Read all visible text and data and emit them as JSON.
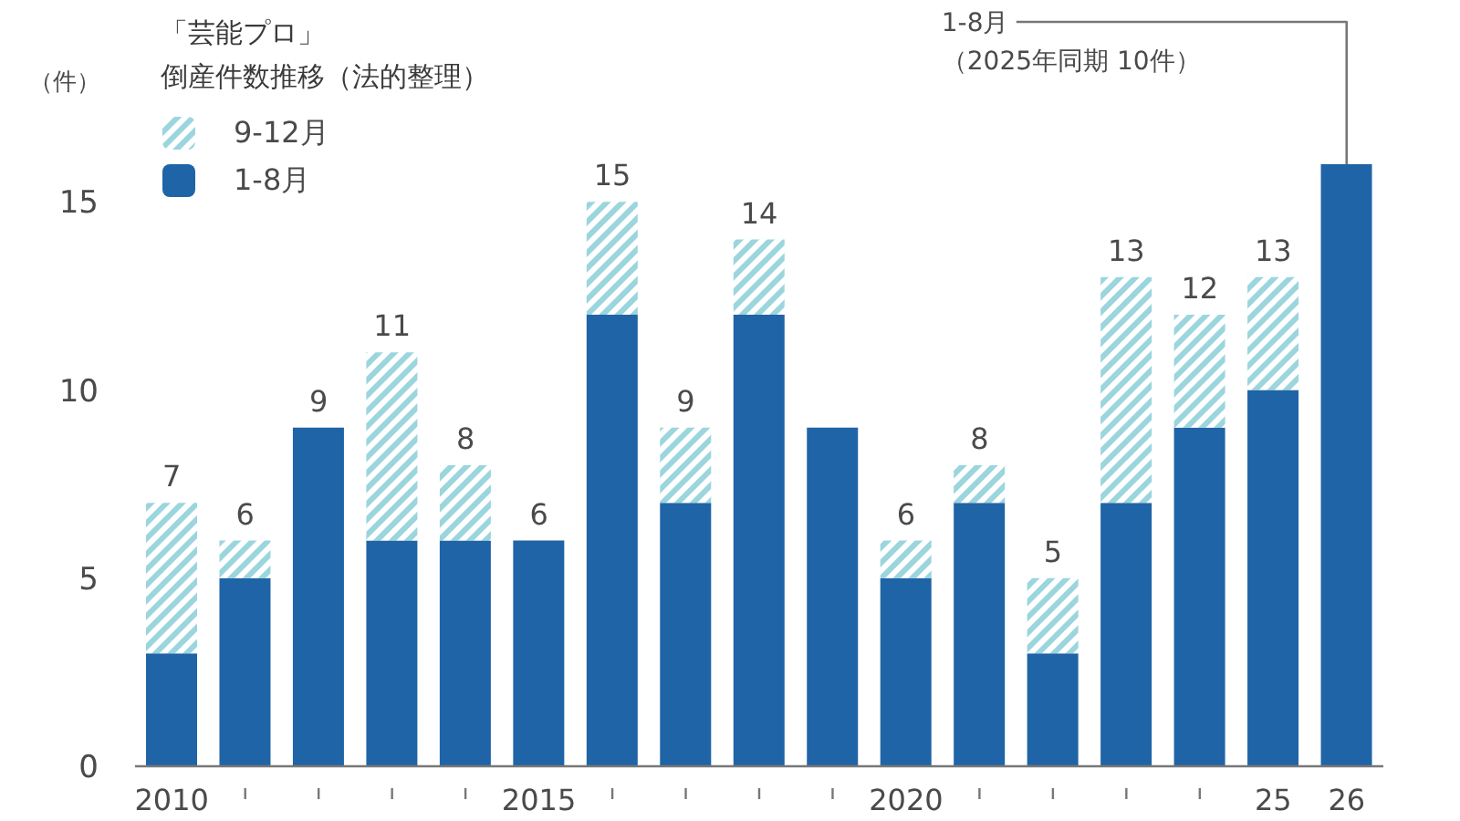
{
  "chart_data": {
    "type": "bar",
    "title": "「芸能プロ」",
    "subtitle": "倒産件数推移（法的整理）",
    "ylabel": "（件）",
    "categories": [
      "2010",
      null,
      null,
      null,
      null,
      "2015",
      null,
      null,
      null,
      null,
      "2020",
      null,
      null,
      null,
      null,
      "25",
      "26"
    ],
    "series": [
      {
        "name": "1-8月",
        "color": "#1f64a6",
        "values": [
          3,
          5,
          9,
          6,
          6,
          6,
          12,
          7,
          12,
          9,
          5,
          7,
          3,
          7,
          9,
          10,
          16
        ]
      },
      {
        "name": "9-12月",
        "color": "#9bd5de",
        "values": [
          4,
          1,
          0,
          5,
          2,
          0,
          3,
          2,
          2,
          0,
          1,
          1,
          2,
          6,
          3,
          3,
          null
        ]
      }
    ],
    "stacked": true,
    "ylim": [
      0,
      16
    ],
    "yticks": [
      0,
      5,
      10,
      15
    ],
    "legend": "top left",
    "totals": [
      "7",
      "6",
      "9",
      "11",
      "8",
      "6",
      "15",
      "9",
      "14",
      null,
      "6",
      "8",
      "5",
      "13",
      "12",
      "13",
      null
    ],
    "annotations": [
      {
        "text": "1-8月",
        "x": "26",
        "y": 16
      },
      {
        "text": "（2025年同期 10件）",
        "x": "26",
        "y": 16
      }
    ]
  }
}
